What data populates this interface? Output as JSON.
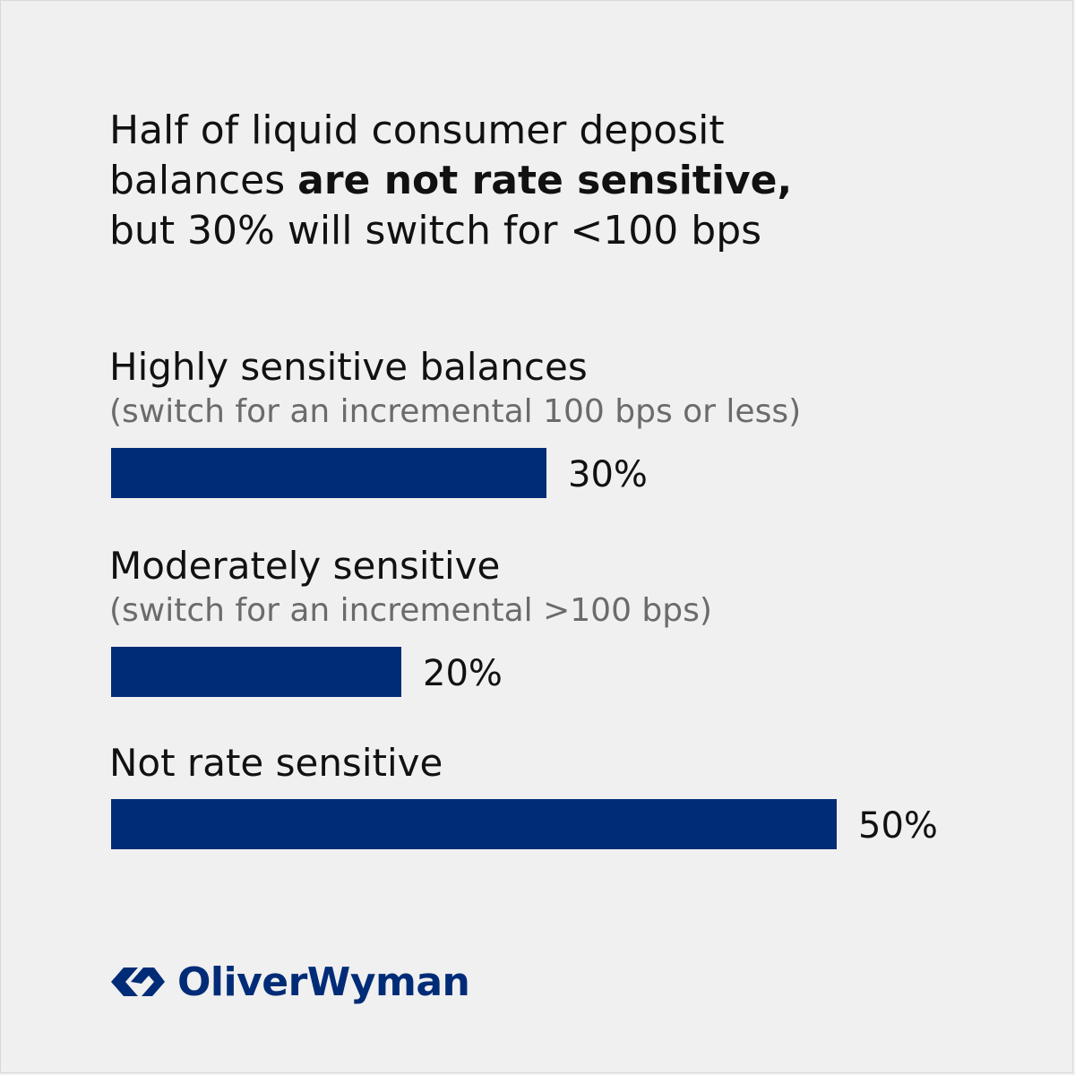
{
  "header": {
    "title_line1": "Half of liquid consumer deposit",
    "title_line2_prefix": "balances ",
    "title_line2_bold": "are not rate sensitive,",
    "title_line3": "but 30% will switch for <100 bps"
  },
  "chart_data": {
    "type": "bar",
    "orientation": "horizontal",
    "categories": [
      "Highly sensitive balances",
      "Moderately sensitive",
      "Not rate sensitive"
    ],
    "sublabels": [
      "(switch for an incremental 100 bps or less)",
      "(switch for an incremental >100 bps)",
      ""
    ],
    "values": [
      30,
      20,
      50
    ],
    "value_labels": [
      "30%",
      "20%",
      "50%"
    ],
    "unit": "%",
    "xlim": [
      0,
      50
    ],
    "grid": false,
    "bar_color": "#002c77"
  },
  "logo": {
    "text": "OliverWyman",
    "color": "#002c77",
    "icon": "oliver-wyman-logo-icon"
  }
}
